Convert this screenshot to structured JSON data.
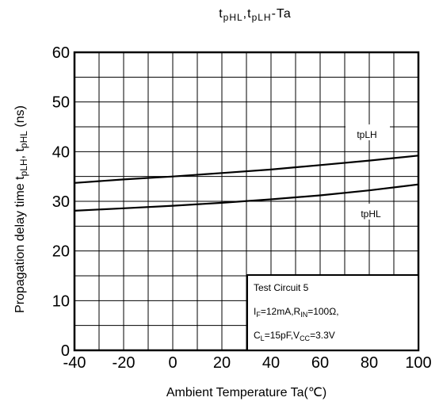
{
  "chart_data": {
    "type": "line",
    "title": {
      "t1": "t",
      "s1": "pHL",
      "sep": ",",
      "t2": "t",
      "s2": "pLH",
      "rest": "-Ta"
    },
    "xlabel": "Ambient Temperature Ta(℃)",
    "ylabel": {
      "main": "Propagation delay time  t",
      "s1": "pLH",
      "mid": ", t",
      "s2": "pHL",
      "unit": "(ns)"
    },
    "xlim": [
      -40,
      100
    ],
    "ylim": [
      0,
      60
    ],
    "x_ticks": [
      "-40",
      "-20",
      "0",
      "20",
      "40",
      "60",
      "80",
      "100"
    ],
    "y_ticks": [
      "0",
      "10",
      "20",
      "30",
      "40",
      "50",
      "60"
    ],
    "grid": true,
    "series": [
      {
        "name": "tpLH",
        "x": [
          -40,
          -20,
          0,
          20,
          40,
          60,
          80,
          100
        ],
        "y": [
          33.7,
          34.4,
          35.0,
          35.7,
          36.4,
          37.3,
          38.2,
          39.2
        ]
      },
      {
        "name": "tpHL",
        "x": [
          -40,
          -20,
          0,
          20,
          40,
          60,
          80,
          100
        ],
        "y": [
          28.1,
          28.6,
          29.1,
          29.7,
          30.4,
          31.2,
          32.2,
          33.4
        ]
      }
    ],
    "annotation": {
      "line1": "Test Circuit 5",
      "line2": {
        "a": "I",
        "as": "F",
        "b": "=12mA,R",
        "bs": "IN",
        "c": "=100Ω,"
      },
      "line3": {
        "a": "C",
        "as": "L",
        "b": "=15pF,V",
        "bs": "CC",
        "c": "=3.3V"
      }
    }
  }
}
